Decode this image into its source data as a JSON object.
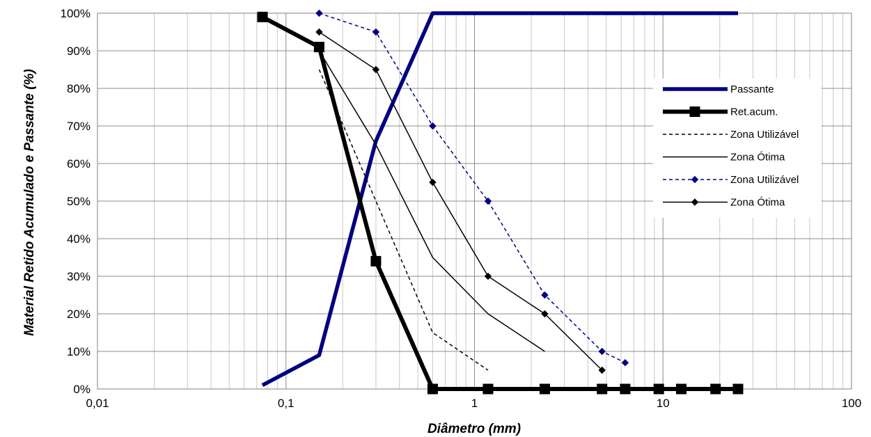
{
  "chart_data": {
    "type": "line",
    "xlabel": "Diâmetro (mm)",
    "ylabel": "Material Retido Acumulado e Passante (%)",
    "xscale": "log",
    "xlim": [
      0.01,
      100
    ],
    "ylim": [
      0,
      100
    ],
    "grid": true,
    "legend_position": "right",
    "x_tick_labels": [
      "0,01",
      "0,1",
      "1",
      "10",
      "100"
    ],
    "y_tick_labels": [
      "0%",
      "10%",
      "20%",
      "30%",
      "40%",
      "50%",
      "60%",
      "70%",
      "80%",
      "90%",
      "100%"
    ],
    "series": [
      {
        "name": "Passante",
        "color": "#000080",
        "style": "thick-solid",
        "marker": "none",
        "points": [
          [
            0.075,
            1
          ],
          [
            0.15,
            9
          ],
          [
            0.3,
            66
          ],
          [
            0.6,
            100
          ],
          [
            1.18,
            100
          ],
          [
            2.36,
            100
          ],
          [
            4.75,
            100
          ],
          [
            6.3,
            100
          ],
          [
            9.5,
            100
          ],
          [
            12.5,
            100
          ],
          [
            19,
            100
          ],
          [
            25,
            100
          ]
        ]
      },
      {
        "name": "Ret.acum.",
        "color": "#000000",
        "style": "thick-solid",
        "marker": "square",
        "points": [
          [
            0.075,
            99
          ],
          [
            0.15,
            91
          ],
          [
            0.3,
            34
          ],
          [
            0.6,
            0
          ],
          [
            1.18,
            0
          ],
          [
            2.36,
            0
          ],
          [
            4.75,
            0
          ],
          [
            6.3,
            0
          ],
          [
            9.5,
            0
          ],
          [
            12.5,
            0
          ],
          [
            19,
            0
          ],
          [
            25,
            0
          ]
        ]
      },
      {
        "name": "Zona Utilizável",
        "color": "#000000",
        "style": "dashed",
        "marker": "none",
        "points": [
          [
            0.15,
            85
          ],
          [
            0.3,
            50
          ],
          [
            0.6,
            15
          ],
          [
            1.18,
            5
          ]
        ]
      },
      {
        "name": "Zona Ótima",
        "color": "#000000",
        "style": "thin-solid",
        "marker": "none",
        "points": [
          [
            0.15,
            90
          ],
          [
            0.3,
            65
          ],
          [
            0.6,
            35
          ],
          [
            1.18,
            20
          ],
          [
            2.36,
            10
          ]
        ]
      },
      {
        "name": "Zona Utilizável",
        "color": "#000080",
        "style": "dashed",
        "marker": "diamond",
        "points": [
          [
            0.15,
            100
          ],
          [
            0.3,
            95
          ],
          [
            0.6,
            70
          ],
          [
            1.18,
            50
          ],
          [
            2.36,
            25
          ],
          [
            4.75,
            10
          ],
          [
            6.3,
            7
          ]
        ]
      },
      {
        "name": "Zona Ótima",
        "color": "#000000",
        "style": "thin-solid",
        "marker": "diamond",
        "points": [
          [
            0.15,
            95
          ],
          [
            0.3,
            85
          ],
          [
            0.6,
            55
          ],
          [
            1.18,
            30
          ],
          [
            2.36,
            20
          ],
          [
            4.75,
            5
          ]
        ]
      }
    ]
  }
}
